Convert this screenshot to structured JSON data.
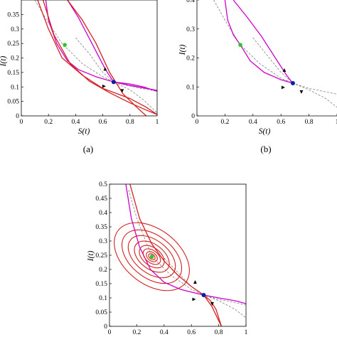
{
  "colors": {
    "manifold": "#cc00cc",
    "orbit": "#d42020",
    "guide": "#808080",
    "saddle": "#0a1ea8",
    "focus": "#22cc22"
  },
  "chart_data": [
    {
      "panel": "(a)",
      "type": "line",
      "xlabel": "S(t)",
      "ylabel": "I(t)",
      "xlim": [
        0,
        1
      ],
      "ylim": [
        0,
        0.4
      ],
      "xticks": [
        "0",
        "0.2",
        "0.4",
        "0.6",
        "0.8",
        "1"
      ],
      "yticks": [
        "0",
        "0.05",
        "0.1",
        "0.15",
        "0.2",
        "0.25",
        "0.3",
        "0.35"
      ],
      "points": [
        {
          "kind": "saddle",
          "x": 0.68,
          "y": 0.117
        },
        {
          "kind": "focus",
          "x": 0.32,
          "y": 0.245
        }
      ],
      "series": [
        {
          "style": "dashed",
          "color": "guide",
          "x": [
            0.1,
            0.2,
            0.3,
            0.45,
            0.6,
            0.68,
            0.8,
            0.9,
            1.0
          ],
          "y": [
            0.4,
            0.32,
            0.25,
            0.18,
            0.135,
            0.117,
            0.09,
            0.055,
            0.01
          ]
        },
        {
          "style": "dashed",
          "color": "guide",
          "x": [
            0.4,
            0.5,
            0.6,
            0.68,
            0.78,
            0.88,
            1.0
          ],
          "y": [
            0.27,
            0.215,
            0.15,
            0.117,
            0.105,
            0.095,
            0.085
          ]
        },
        {
          "style": "solid",
          "color": "manifold",
          "x": [
            0.34,
            0.42,
            0.52,
            0.62,
            0.68,
            0.8,
            0.92,
            1.0
          ],
          "y": [
            0.4,
            0.34,
            0.25,
            0.16,
            0.117,
            0.105,
            0.095,
            0.088
          ]
        },
        {
          "style": "solid",
          "color": "manifold",
          "x": [
            0.18,
            0.2,
            0.26,
            0.34,
            0.42,
            0.55,
            0.68
          ],
          "y": [
            0.4,
            0.33,
            0.25,
            0.19,
            0.16,
            0.135,
            0.117
          ]
        },
        {
          "style": "solid",
          "color": "manifold",
          "x": [
            0.68,
            0.8,
            0.9,
            1.0
          ],
          "y": [
            0.117,
            0.11,
            0.1,
            0.085
          ]
        },
        {
          "style": "solid",
          "color": "orbit",
          "x": [
            0.12,
            0.2,
            0.3,
            0.45,
            0.6,
            0.8,
            0.92,
            1.0
          ],
          "y": [
            0.4,
            0.3,
            0.2,
            0.14,
            0.095,
            0.06,
            0.03,
            0.005
          ]
        },
        {
          "style": "solid",
          "color": "orbit",
          "x": [
            0.16,
            0.24,
            0.36,
            0.5,
            0.65,
            0.8,
            0.92,
            1.0
          ],
          "y": [
            0.4,
            0.28,
            0.18,
            0.12,
            0.08,
            0.045,
            0.02,
            0.005
          ]
        },
        {
          "style": "solid",
          "color": "orbit",
          "x": [
            0.34,
            0.45,
            0.55,
            0.65,
            0.75,
            0.85,
            0.92
          ],
          "y": [
            0.4,
            0.33,
            0.25,
            0.15,
            0.075,
            0.03,
            0.0
          ]
        }
      ]
    },
    {
      "panel": "(b)",
      "type": "line",
      "xlabel": "S(t)",
      "ylabel": "I(t)",
      "xlim": [
        0,
        1
      ],
      "ylim": [
        0,
        0.4
      ],
      "xticks": [
        "0",
        "0.2",
        "0.4",
        "0.6",
        "0.8",
        "1"
      ],
      "yticks": [
        "0",
        "0.1",
        "0.2",
        "0.3",
        "0.4"
      ],
      "points": [
        {
          "kind": "saddle",
          "x": 0.685,
          "y": 0.113
        },
        {
          "kind": "focus",
          "x": 0.31,
          "y": 0.245
        }
      ],
      "series": [
        {
          "style": "dashed",
          "color": "guide",
          "x": [
            0.12,
            0.2,
            0.31,
            0.45,
            0.6,
            0.685,
            0.8,
            0.92,
            1.0
          ],
          "y": [
            0.4,
            0.33,
            0.245,
            0.18,
            0.13,
            0.113,
            0.09,
            0.06,
            0.03
          ]
        },
        {
          "style": "dashed",
          "color": "guide",
          "x": [
            0.4,
            0.5,
            0.6,
            0.685,
            0.8,
            0.9,
            1.0
          ],
          "y": [
            0.27,
            0.21,
            0.15,
            0.113,
            0.095,
            0.085,
            0.075
          ]
        },
        {
          "style": "solid",
          "color": "manifold",
          "x": [
            0.26,
            0.36,
            0.46,
            0.56,
            0.64,
            0.685
          ],
          "y": [
            0.4,
            0.34,
            0.275,
            0.2,
            0.14,
            0.113
          ]
        },
        {
          "style": "solid",
          "color": "manifold",
          "x": [
            0.2,
            0.22,
            0.26,
            0.31,
            0.38,
            0.48,
            0.6,
            0.685
          ],
          "y": [
            0.4,
            0.33,
            0.28,
            0.245,
            0.19,
            0.15,
            0.125,
            0.113
          ]
        }
      ]
    },
    {
      "panel": "(c)",
      "type": "line",
      "xlabel": "S(t)",
      "ylabel": "I(t)",
      "xlim": [
        0,
        1
      ],
      "ylim": [
        0,
        0.5
      ],
      "xticks": [
        "0",
        "0.2",
        "0.4",
        "0.6",
        "0.8",
        "1"
      ],
      "yticks": [
        "0",
        "0.05",
        "0.1",
        "0.15",
        "0.2",
        "0.25",
        "0.3",
        "0.35",
        "0.4",
        "0.45",
        "0.5"
      ],
      "points": [
        {
          "kind": "saddle",
          "x": 0.69,
          "y": 0.11
        },
        {
          "kind": "focus",
          "x": 0.31,
          "y": 0.245
        }
      ],
      "series": [
        {
          "style": "dashed",
          "color": "guide",
          "x": [
            0.14,
            0.2,
            0.31,
            0.45,
            0.6,
            0.69,
            0.8,
            0.92,
            1.0
          ],
          "y": [
            0.48,
            0.38,
            0.245,
            0.18,
            0.13,
            0.11,
            0.09,
            0.06,
            0.03
          ]
        },
        {
          "style": "dashed",
          "color": "guide",
          "x": [
            0.4,
            0.5,
            0.6,
            0.69,
            0.8,
            0.9,
            1.0
          ],
          "y": [
            0.24,
            0.19,
            0.14,
            0.11,
            0.095,
            0.085,
            0.075
          ]
        },
        {
          "style": "solid",
          "color": "manifold",
          "x": [
            0.12,
            0.16,
            0.22,
            0.3,
            0.4,
            0.52,
            0.62,
            0.69,
            0.8,
            0.92,
            1.0
          ],
          "y": [
            0.5,
            0.38,
            0.28,
            0.2,
            0.155,
            0.13,
            0.118,
            0.11,
            0.1,
            0.09,
            0.08
          ]
        },
        {
          "style": "solid",
          "color": "orbit",
          "x": [
            0.15,
            0.22,
            0.31,
            0.4,
            0.5,
            0.6,
            0.69,
            0.75,
            0.82
          ],
          "y": [
            0.5,
            0.38,
            0.29,
            0.23,
            0.18,
            0.14,
            0.11,
            0.07,
            0.0
          ]
        },
        {
          "style": "solid",
          "color": "orbit",
          "x": [
            0.69,
            0.74,
            0.78,
            0.82
          ],
          "y": [
            0.11,
            0.09,
            0.06,
            0.0
          ]
        }
      ],
      "spiral": {
        "center": [
          0.31,
          0.245
        ],
        "color": "orbit",
        "loops": [
          {
            "rx": 0.2,
            "ry": 0.15
          },
          {
            "rx": 0.155,
            "ry": 0.12
          },
          {
            "rx": 0.12,
            "ry": 0.095
          },
          {
            "rx": 0.09,
            "ry": 0.07
          },
          {
            "rx": 0.065,
            "ry": 0.05
          },
          {
            "rx": 0.045,
            "ry": 0.035
          },
          {
            "rx": 0.03,
            "ry": 0.022
          },
          {
            "rx": 0.018,
            "ry": 0.013
          }
        ]
      }
    }
  ]
}
